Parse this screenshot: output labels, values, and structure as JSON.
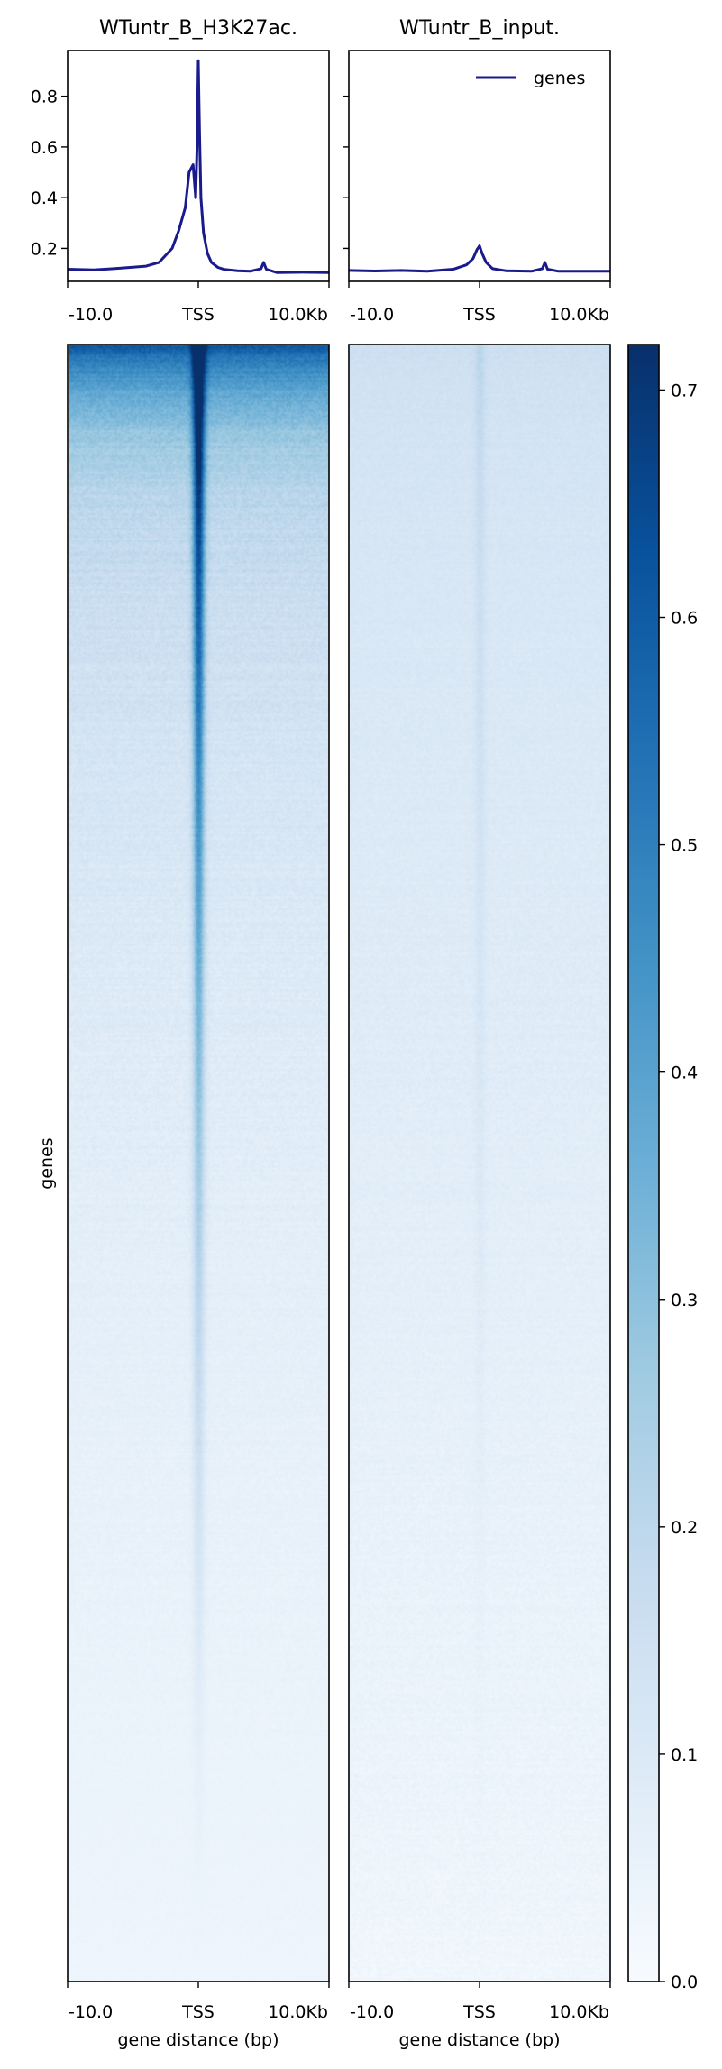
{
  "chart_data": {
    "type": "heatmap",
    "panels": [
      {
        "title": "WTuntr_B_H3K27ac.",
        "profile": {
          "type": "line",
          "x_ticks": [
            "-10.0",
            "TSS",
            "10.0Kb"
          ],
          "xlim": [
            -10000,
            10000
          ],
          "ylim": [
            0.07,
            0.98
          ],
          "y_ticks": [
            0.2,
            0.4,
            0.6,
            0.8
          ],
          "y_tick_labels": [
            "0.2",
            "0.4",
            "0.6",
            "0.8"
          ],
          "series": [
            {
              "name": "genes",
              "color": "#1a1a8c",
              "x": [
                -10000,
                -8000,
                -6000,
                -4000,
                -3000,
                -2000,
                -1500,
                -1000,
                -700,
                -400,
                -200,
                -100,
                0,
                100,
                200,
                400,
                700,
                1000,
                1500,
                2000,
                3000,
                4000,
                4800,
                5000,
                5200,
                6000,
                8000,
                10000
              ],
              "y": [
                0.118,
                0.115,
                0.122,
                0.13,
                0.145,
                0.2,
                0.27,
                0.36,
                0.5,
                0.53,
                0.4,
                0.6,
                0.94,
                0.65,
                0.4,
                0.26,
                0.18,
                0.145,
                0.125,
                0.117,
                0.112,
                0.11,
                0.12,
                0.145,
                0.118,
                0.105,
                0.106,
                0.105
              ]
            }
          ]
        },
        "heatmap": {
          "x_ticks": [
            "-10.0",
            "TSS",
            "10.0Kb"
          ],
          "xlabel": "gene distance (bp)",
          "ylabel": "genes"
        }
      },
      {
        "title": "WTuntr_B_input.",
        "profile": {
          "type": "line",
          "x_ticks": [
            "-10.0",
            "TSS",
            "10.0Kb"
          ],
          "xlim": [
            -10000,
            10000
          ],
          "ylim": [
            0.07,
            0.98
          ],
          "legend": {
            "label": "genes",
            "position": "upper right"
          },
          "series": [
            {
              "name": "genes",
              "color": "#1a1a8c",
              "x": [
                -10000,
                -8000,
                -6000,
                -4000,
                -2000,
                -1000,
                -500,
                -200,
                0,
                200,
                500,
                1000,
                2000,
                4000,
                4800,
                5000,
                5200,
                6000,
                8000,
                10000
              ],
              "y": [
                0.113,
                0.111,
                0.113,
                0.11,
                0.118,
                0.135,
                0.16,
                0.195,
                0.21,
                0.18,
                0.145,
                0.12,
                0.112,
                0.11,
                0.12,
                0.145,
                0.118,
                0.11,
                0.11,
                0.11
              ]
            }
          ]
        },
        "heatmap": {
          "x_ticks": [
            "-10.0",
            "TSS",
            "10.0Kb"
          ],
          "xlabel": "gene distance (bp)"
        }
      }
    ],
    "colorbar": {
      "colormap": "Blues",
      "range": [
        0,
        0.72
      ],
      "ticks": [
        "0.0",
        "0.1",
        "0.2",
        "0.3",
        "0.4",
        "0.5",
        "0.6",
        "0.7"
      ]
    }
  }
}
